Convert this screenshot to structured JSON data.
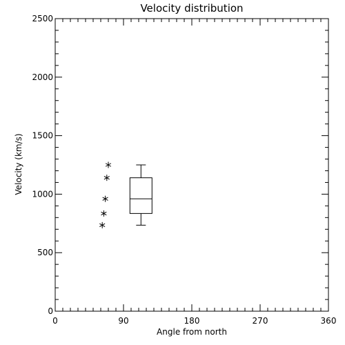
{
  "chart_data": {
    "type": "scatter",
    "title": "Velocity distribution",
    "xlabel": "Angle from north",
    "ylabel": "Velocity (km/s)",
    "xlim": [
      0,
      360
    ],
    "ylim": [
      0,
      2500
    ],
    "xticks": [
      0,
      90,
      180,
      270,
      360
    ],
    "yticks": [
      0,
      500,
      1000,
      1500,
      2000,
      2500
    ],
    "x_minor_step": 10,
    "y_minor_step": 100,
    "grid": false,
    "points": [
      {
        "x": 62,
        "y": 735
      },
      {
        "x": 64,
        "y": 835
      },
      {
        "x": 66,
        "y": 960
      },
      {
        "x": 68,
        "y": 1140
      },
      {
        "x": 70,
        "y": 1250
      }
    ],
    "boxplot": {
      "x": 113,
      "whisker_low": 735,
      "q1": 835,
      "median": 960,
      "q3": 1140,
      "whisker_high": 1250
    },
    "colors": {
      "ink": "#000000",
      "background": "#ffffff"
    }
  }
}
